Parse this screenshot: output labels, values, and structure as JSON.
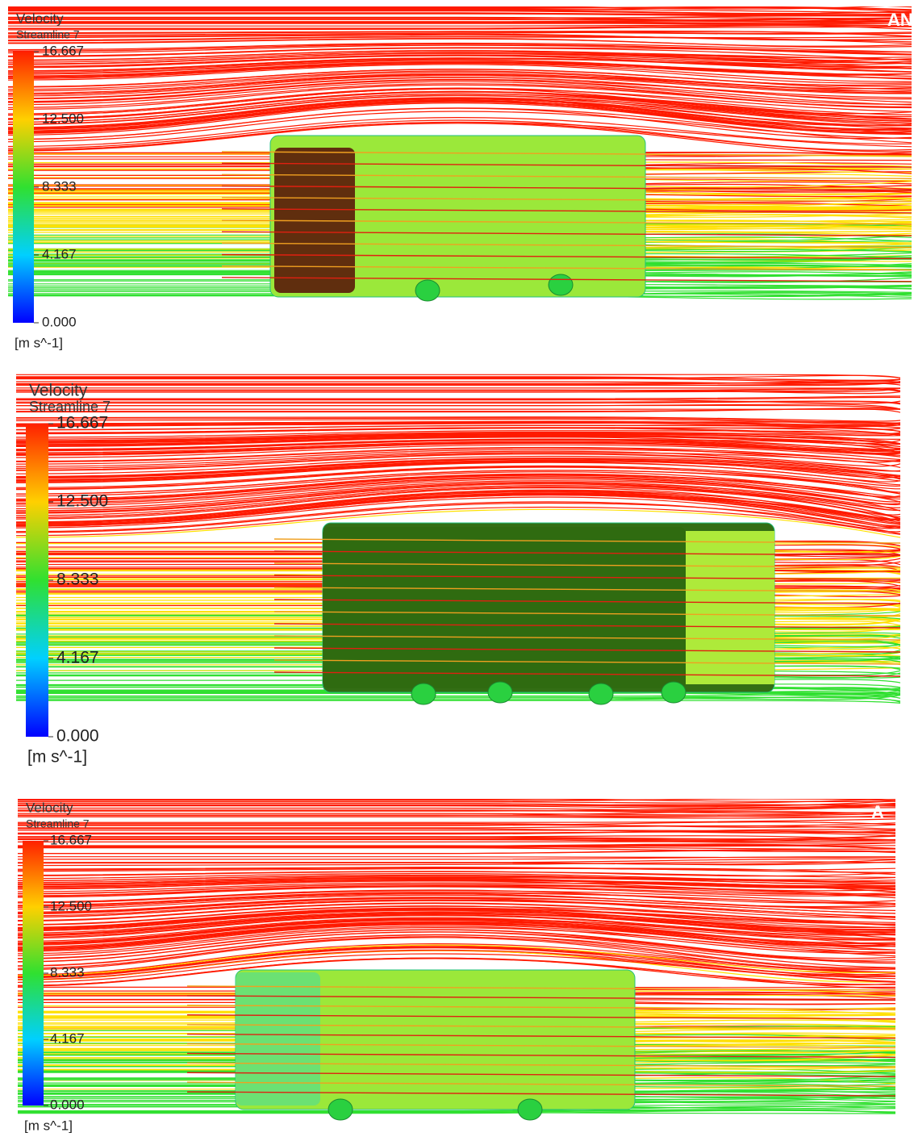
{
  "panels": [
    {
      "title": "Velocity",
      "subtitle": "Streamline 7",
      "legend_labels": [
        "16.667",
        "12.500",
        "8.333",
        "4.167",
        "0.000"
      ],
      "unit": "[m s^-1]",
      "logo": "AN"
    },
    {
      "title": "Velocity",
      "subtitle": "Streamline 7",
      "legend_labels": [
        "16.667",
        "12.500",
        "8.333",
        "4.167",
        "0.000"
      ],
      "unit": "[m s^-1]"
    },
    {
      "title": "Velocity",
      "subtitle": "Streamline 7",
      "legend_labels": [
        "16.667",
        "12.500",
        "8.333",
        "4.167",
        "0.000"
      ],
      "unit": "[m s^-1]",
      "logo": "A"
    }
  ]
}
